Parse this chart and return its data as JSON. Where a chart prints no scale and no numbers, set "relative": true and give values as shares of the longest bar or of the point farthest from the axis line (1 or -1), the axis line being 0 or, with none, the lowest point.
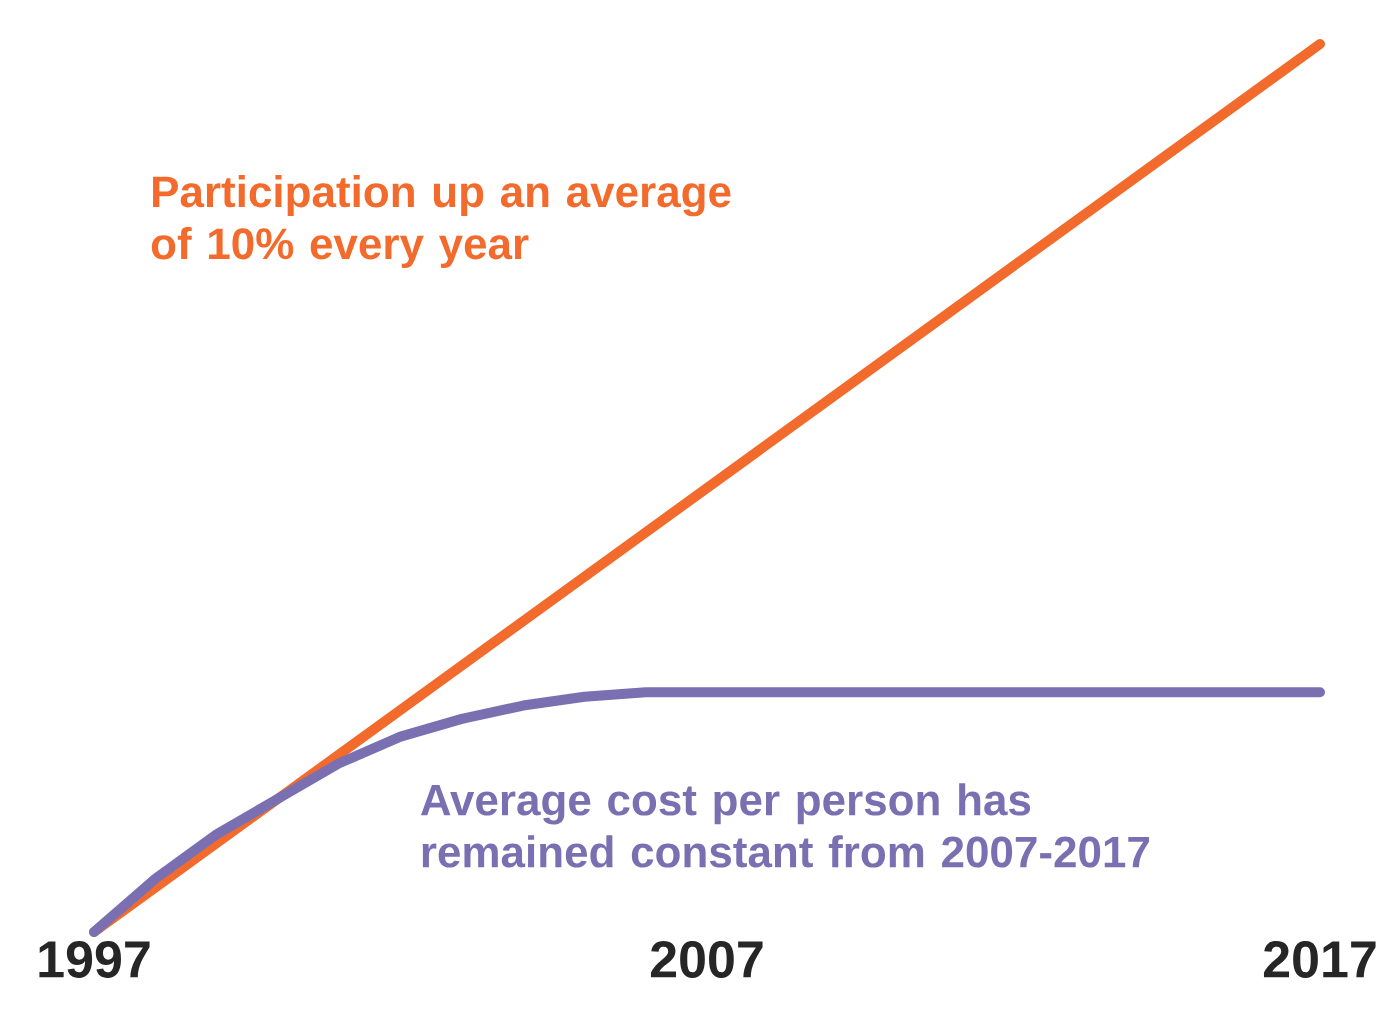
{
  "chart_data": {
    "type": "line",
    "relative": true,
    "x": [
      1997,
      1998,
      1999,
      2000,
      2001,
      2002,
      2003,
      2004,
      2005,
      2006,
      2007,
      2009,
      2011,
      2013,
      2015,
      2017
    ],
    "xlim": [
      1997,
      2017
    ],
    "xticks": [
      1997,
      2007,
      2017
    ],
    "marker": "none",
    "line_style": "solid",
    "series": [
      {
        "color": "#f26b2d",
        "x": [
          1997,
          2017
        ],
        "values": [
          0,
          1
        ]
      },
      {
        "color": "#7a6fb1",
        "values": [
          0,
          0.06,
          0.11,
          0.15,
          0.19,
          0.22,
          0.24,
          0.255,
          0.265,
          0.27,
          0.27,
          0.27,
          0.27,
          0.27,
          0.27,
          0.27
        ]
      }
    ],
    "annotations": [
      "Participation up an average of 10% every year",
      "Average cost per person has remained constant from 2007-2017"
    ]
  }
}
